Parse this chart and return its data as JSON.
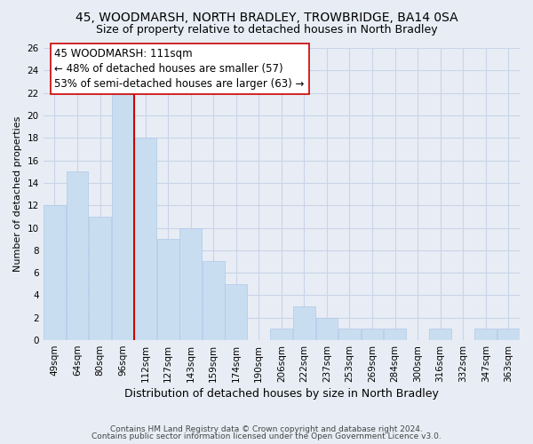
{
  "title": "45, WOODMARSH, NORTH BRADLEY, TROWBRIDGE, BA14 0SA",
  "subtitle": "Size of property relative to detached houses in North Bradley",
  "xlabel": "Distribution of detached houses by size in North Bradley",
  "ylabel": "Number of detached properties",
  "categories": [
    "49sqm",
    "64sqm",
    "80sqm",
    "96sqm",
    "112sqm",
    "127sqm",
    "143sqm",
    "159sqm",
    "174sqm",
    "190sqm",
    "206sqm",
    "222sqm",
    "237sqm",
    "253sqm",
    "269sqm",
    "284sqm",
    "300sqm",
    "316sqm",
    "332sqm",
    "347sqm",
    "363sqm"
  ],
  "values": [
    12,
    15,
    11,
    22,
    18,
    9,
    10,
    7,
    5,
    0,
    1,
    3,
    2,
    1,
    1,
    1,
    0,
    1,
    0,
    1,
    1
  ],
  "bar_color": "#c8ddf0",
  "bar_edge_color": "#b0c8e8",
  "reference_line_x": 3.5,
  "reference_line_color": "#cc0000",
  "annotation_line1": "45 WOODMARSH: 111sqm",
  "annotation_line2": "← 48% of detached houses are smaller (57)",
  "annotation_line3": "53% of semi-detached houses are larger (63) →",
  "annotation_box_facecolor": "#ffffff",
  "annotation_box_edgecolor": "#cc0000",
  "ylim": [
    0,
    26
  ],
  "yticks": [
    0,
    2,
    4,
    6,
    8,
    10,
    12,
    14,
    16,
    18,
    20,
    22,
    24,
    26
  ],
  "grid_color": "#c8d4e8",
  "bg_color": "#e8edf5",
  "footer_line1": "Contains HM Land Registry data © Crown copyright and database right 2024.",
  "footer_line2": "Contains public sector information licensed under the Open Government Licence v3.0.",
  "title_fontsize": 10,
  "subtitle_fontsize": 9,
  "xlabel_fontsize": 9,
  "ylabel_fontsize": 8,
  "tick_fontsize": 7.5,
  "annotation_fontsize": 8.5,
  "footer_fontsize": 6.5
}
